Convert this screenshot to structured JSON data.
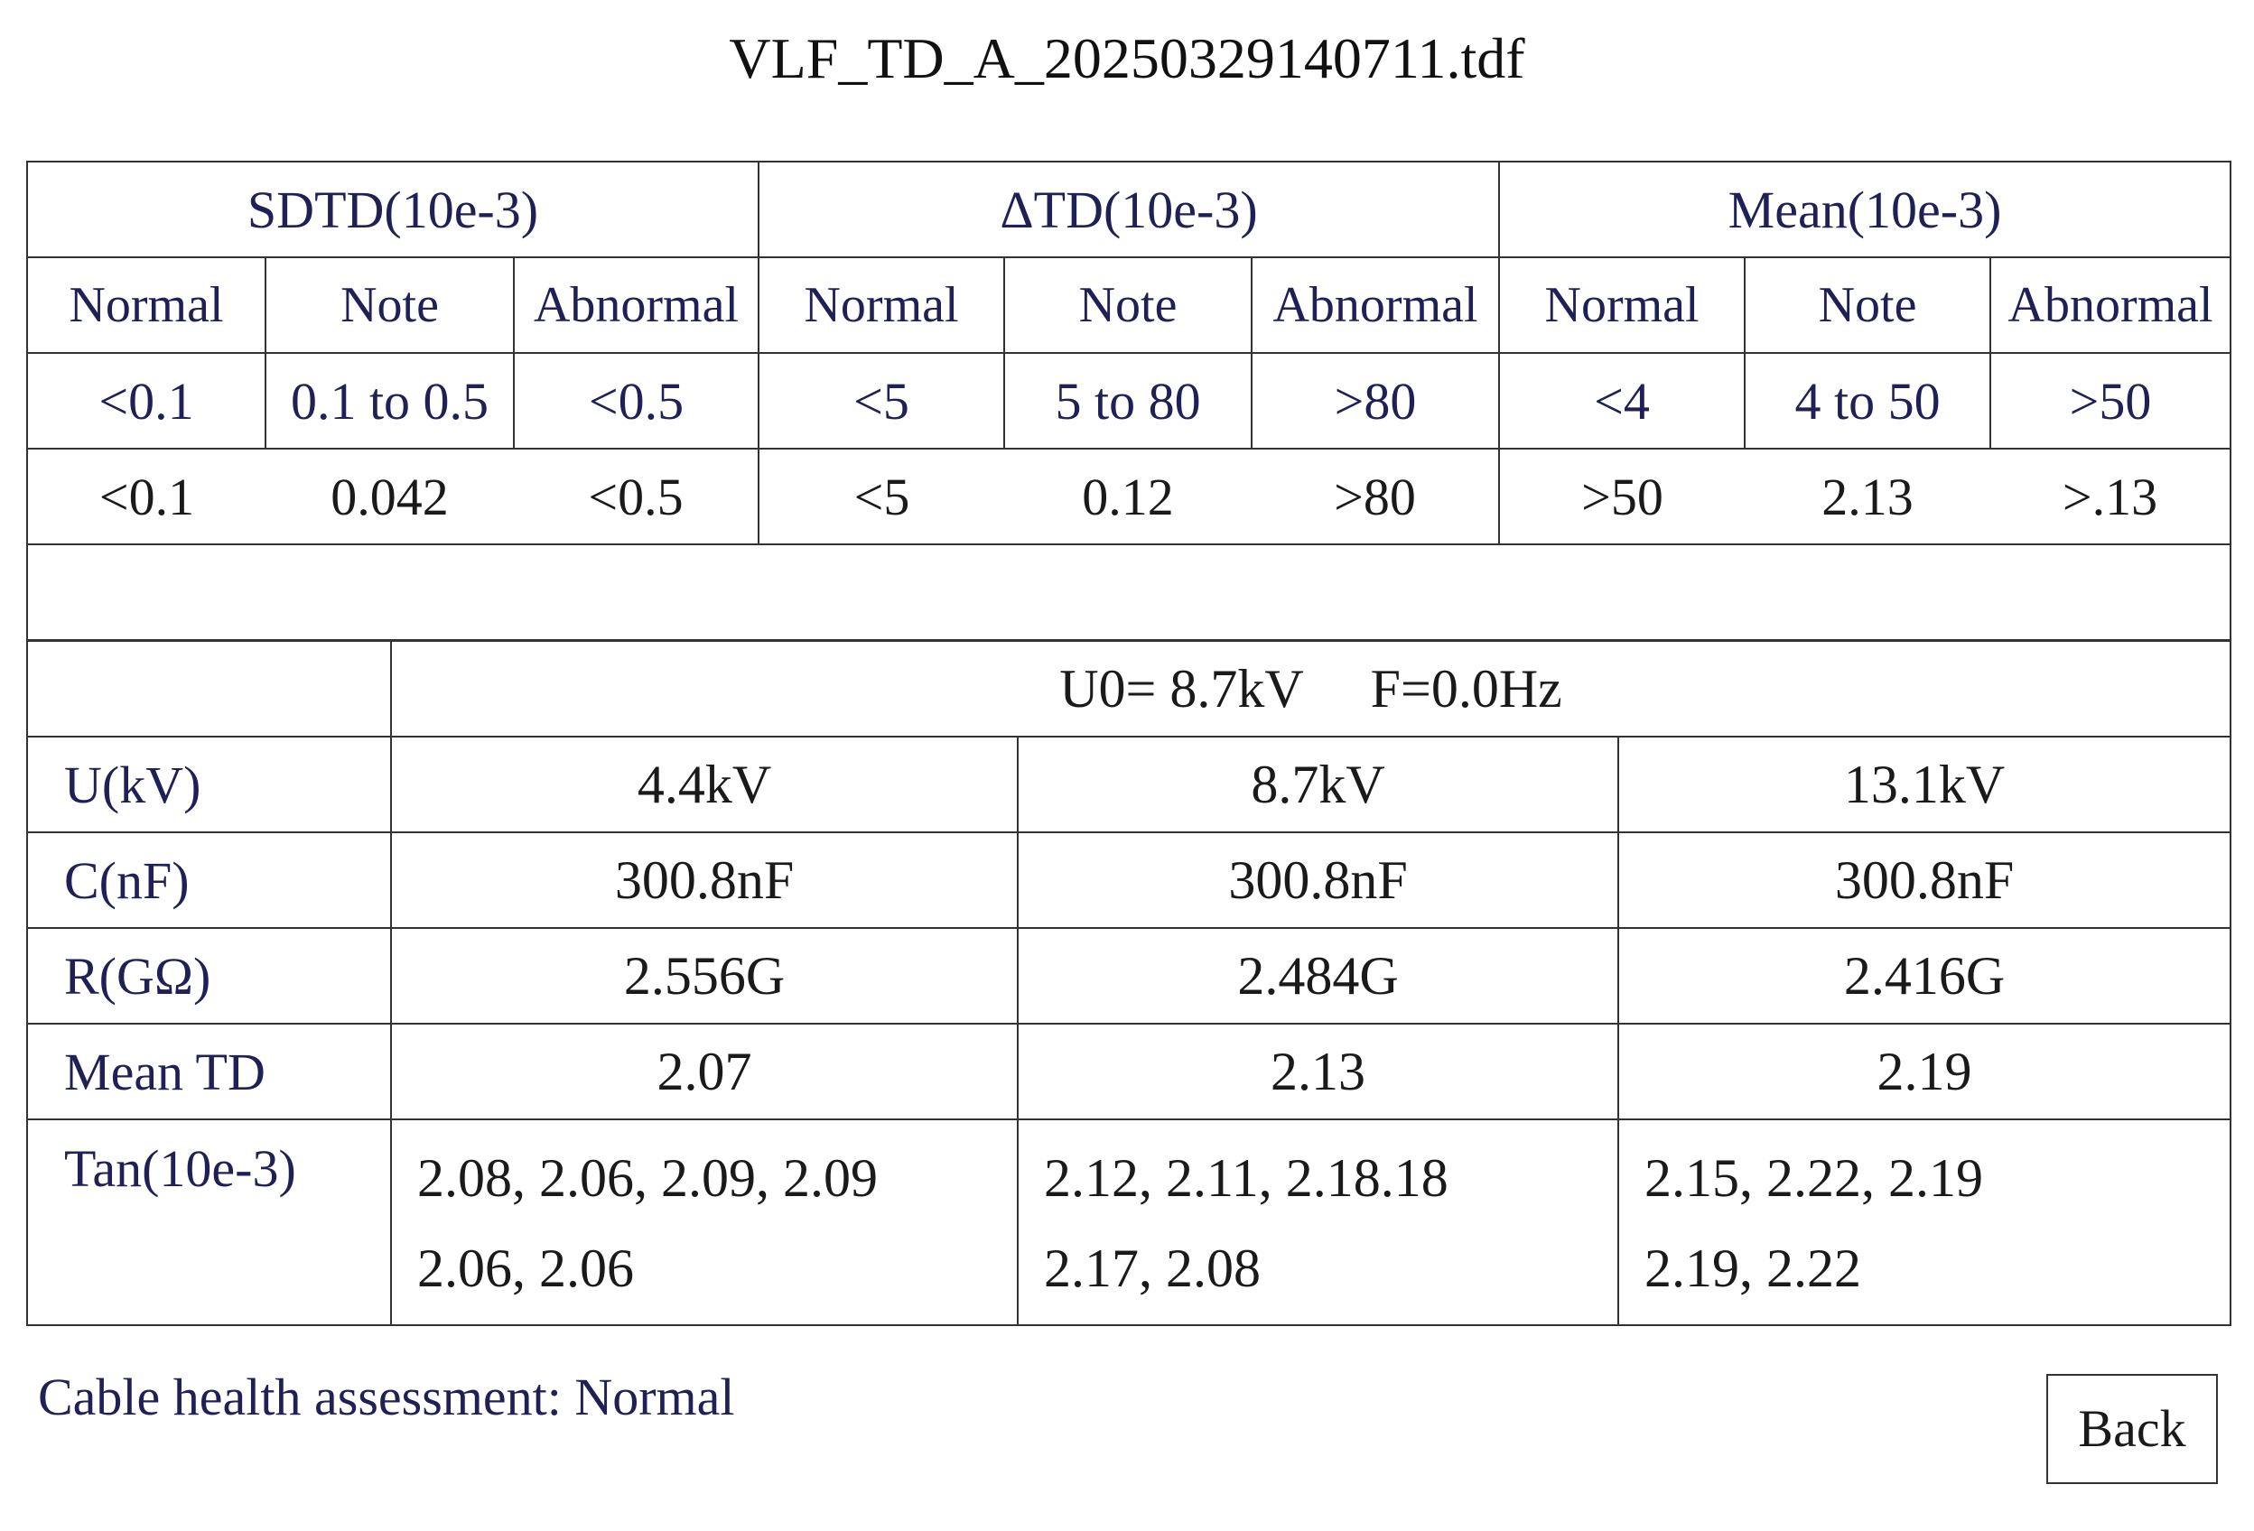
{
  "window": {
    "title": "VLF_TD_A_20250329140711.tdf"
  },
  "criteria": {
    "groups": [
      {
        "label": "SDTD(10e-3)"
      },
      {
        "label": "ΔTD(10e-3)"
      },
      {
        "label": "Mean(10e-3)"
      }
    ],
    "subheaders": [
      "Normal",
      "Note",
      "Abnormal",
      "Normal",
      "Note",
      "Abnormal",
      "Normal",
      "Note",
      "Abnormal"
    ],
    "thresholds": [
      "<0.1",
      "0.1 to 0.5",
      "<0.5",
      "<5",
      "5 to 80",
      ">80",
      "<4",
      "4 to 50",
      ">50"
    ],
    "results": [
      "<0.1",
      "0.042",
      "<0.5",
      "<5",
      "0.12",
      ">80",
      ">50",
      "2.13",
      ">.13"
    ]
  },
  "measurement": {
    "header": "U0= 8.7kV     F=0.0Hz",
    "rows": [
      {
        "label": "U(kV)",
        "values": [
          "4.4kV",
          "8.7kV",
          "13.1kV"
        ]
      },
      {
        "label": "C(nF)",
        "values": [
          "300.8nF",
          "300.8nF",
          "300.8nF"
        ]
      },
      {
        "label": "R(GΩ)",
        "values": [
          "2.556G",
          "2.484G",
          "2.416G"
        ]
      },
      {
        "label": "Mean TD",
        "values": [
          "2.07",
          "2.13",
          "2.19"
        ]
      }
    ],
    "tan": {
      "label": "Tan(10e-3)",
      "cells": [
        {
          "line1": "2.08, 2.06, 2.09, 2.09",
          "line2": "2.06,  2.06"
        },
        {
          "line1": "2.12, 2.11, 2.18.18",
          "line2": "2.17,  2.08"
        },
        {
          "line1": "2.15,  2.22,  2.19",
          "line2": "2.19,  2.22"
        }
      ]
    }
  },
  "summary": {
    "text": "Cable health assessment: Normal"
  },
  "footer": {
    "back_label": "Back"
  }
}
